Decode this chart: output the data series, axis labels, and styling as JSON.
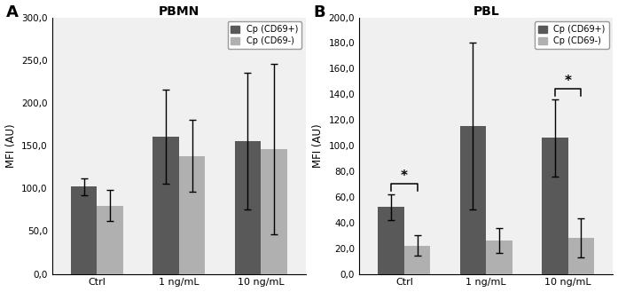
{
  "panel_A": {
    "title": "PBMN",
    "label": "A",
    "ylabel": "MFI (AU)",
    "ylim": [
      0,
      300
    ],
    "yticks": [
      0,
      50,
      100,
      150,
      200,
      250,
      300
    ],
    "ytick_labels": [
      "0,0",
      "50,0",
      "100,0",
      "150,0",
      "200,0",
      "250,0",
      "300,0"
    ],
    "categories": [
      "Ctrl",
      "1 ng/mL",
      "10 ng/mL"
    ],
    "cd69pos_values": [
      102,
      160,
      155
    ],
    "cd69neg_values": [
      80,
      138,
      146
    ],
    "cd69pos_errors": [
      10,
      55,
      80
    ],
    "cd69neg_errors": [
      18,
      42,
      100
    ],
    "significance": []
  },
  "panel_B": {
    "title": "PBL",
    "label": "B",
    "ylabel": "MFI (AU)",
    "ylim": [
      0,
      200
    ],
    "yticks": [
      0,
      20,
      40,
      60,
      80,
      100,
      120,
      140,
      160,
      180,
      200
    ],
    "ytick_labels": [
      "0,0",
      "20,0",
      "40,0",
      "60,0",
      "80,0",
      "100,0",
      "120,0",
      "140,0",
      "160,0",
      "180,0",
      "200,0"
    ],
    "categories": [
      "Ctrl",
      "1 ng/mL",
      "10 ng/mL"
    ],
    "cd69pos_values": [
      52,
      115,
      106
    ],
    "cd69neg_values": [
      22,
      26,
      28
    ],
    "cd69pos_errors": [
      10,
      65,
      30
    ],
    "cd69neg_errors": [
      8,
      10,
      15
    ],
    "significance": [
      0,
      2
    ]
  },
  "color_cd69pos": "#595959",
  "color_cd69neg": "#b0b0b0",
  "bar_width": 0.32,
  "legend_labels": [
    "Cp (CD69+)",
    "Cp (CD69-)"
  ],
  "bg_color": "#ffffff",
  "panel_bg": "#f0f0f0"
}
